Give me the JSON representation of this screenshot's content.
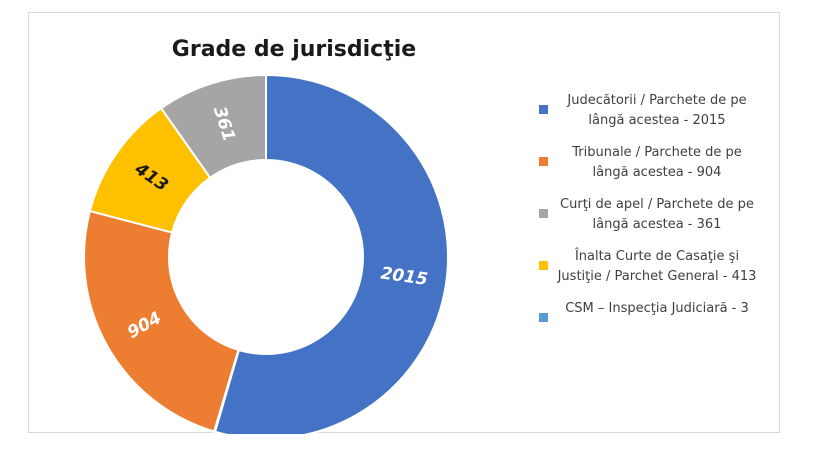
{
  "chart_data": {
    "type": "pie",
    "donut": true,
    "title": "Grade de jurisdicţie",
    "legend_position": "right",
    "slices": [
      {
        "label": "Judecătorii / Parchete de pe lângă acestea - 2015",
        "value": 2015,
        "color": "#4472C4",
        "data_label": "2015",
        "label_color": "#ffffff"
      },
      {
        "label": "Tribunale / Parchete de pe lângă acestea - 904",
        "value": 904,
        "color": "#ED7D31",
        "data_label": "904",
        "label_color": "#ffffff"
      },
      {
        "label": "Curţi de apel / Parchete de pe lângă acestea - 361",
        "value": 361,
        "color": "#A5A5A5",
        "data_label": "361",
        "label_color": "#ffffff"
      },
      {
        "label": "Înalta Curte de Casaţie şi Justiţie / Parchet General - 413",
        "value": 413,
        "color": "#FFC000",
        "data_label": "413",
        "label_color": "#1a1a1a"
      },
      {
        "label": "CSM – Inspecţia Judiciară - 3",
        "value": 3,
        "color": "#5B9BD5",
        "data_label": "",
        "label_color": "#ffffff"
      }
    ]
  }
}
